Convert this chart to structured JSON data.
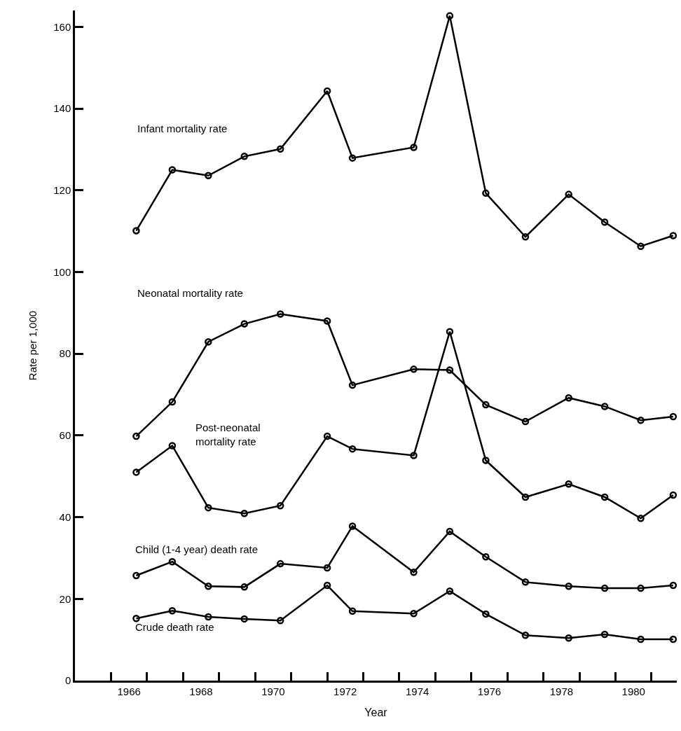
{
  "chart_data": {
    "type": "line",
    "xlabel": "Year",
    "ylabel": "Rate per 1,000",
    "x": [
      1966.2,
      1967.2,
      1968.2,
      1969.2,
      1970.2,
      1971.5,
      1972.2,
      1973.9,
      1974.9,
      1975.9,
      1977.0,
      1978.2,
      1979.2,
      1980.2,
      1981.1
    ],
    "series": [
      {
        "name": "Infant mortality rate",
        "color": "#000000",
        "values": [
          110.1,
          125.0,
          123.6,
          128.3,
          130.1,
          144.3,
          127.9,
          130.5,
          162.7,
          119.3,
          108.6,
          119.0,
          112.2,
          106.3,
          108.9
        ]
      },
      {
        "name": "Neonatal mortality rate",
        "color": "#000000",
        "values": [
          59.8,
          68.2,
          82.9,
          87.3,
          89.7,
          88.0,
          72.3,
          76.2,
          76.0,
          67.5,
          63.4,
          69.2,
          67.1,
          63.7,
          64.6
        ]
      },
      {
        "name": "Post-neonatal\nmortality rate",
        "color": "#000000",
        "values": [
          51.0,
          57.5,
          42.3,
          40.9,
          42.8,
          59.8,
          56.7,
          55.1,
          85.4,
          53.9,
          44.9,
          48.1,
          44.9,
          39.7,
          45.4
        ]
      },
      {
        "name": "Child (1-4 year) death rate",
        "color": "#000000",
        "values": [
          25.7,
          29.1,
          23.1,
          22.9,
          28.6,
          27.6,
          37.8,
          26.5,
          36.5,
          30.3,
          24.1,
          23.1,
          22.6,
          22.6,
          23.3
        ]
      },
      {
        "name": "Crude death rate",
        "color": "#000000",
        "values": [
          15.2,
          17.1,
          15.6,
          15.1,
          14.7,
          23.3,
          17.0,
          16.4,
          21.9,
          16.3,
          11.1,
          10.4,
          11.3,
          10.1,
          10.1
        ]
      }
    ],
    "xlim": [
      1964.5,
      1981.2
    ],
    "ylim": [
      0,
      164
    ],
    "xticks": [
      {
        "value": 1965.5,
        "label": null
      },
      {
        "value": 1966,
        "label": "1966"
      },
      {
        "value": 1966.5,
        "label": null
      },
      {
        "value": 1967.5,
        "label": null
      },
      {
        "value": 1968,
        "label": "1968"
      },
      {
        "value": 1968.5,
        "label": null
      },
      {
        "value": 1969.5,
        "label": null
      },
      {
        "value": 1970,
        "label": "1970"
      },
      {
        "value": 1970.5,
        "label": null
      },
      {
        "value": 1971.5,
        "label": null
      },
      {
        "value": 1972,
        "label": "1972"
      },
      {
        "value": 1972.5,
        "label": null
      },
      {
        "value": 1973.5,
        "label": null
      },
      {
        "value": 1974,
        "label": "1974"
      },
      {
        "value": 1974.5,
        "label": null
      },
      {
        "value": 1975.5,
        "label": null
      },
      {
        "value": 1976,
        "label": "1976"
      },
      {
        "value": 1976.5,
        "label": null
      },
      {
        "value": 1977.5,
        "label": null
      },
      {
        "value": 1978,
        "label": "1978"
      },
      {
        "value": 1978.5,
        "label": null
      },
      {
        "value": 1979.5,
        "label": null
      },
      {
        "value": 1980,
        "label": "1980"
      },
      {
        "value": 1980.5,
        "label": null
      }
    ],
    "yticks": [
      0,
      20,
      40,
      60,
      80,
      100,
      120,
      140,
      160
    ],
    "legend": false,
    "marker": "circle",
    "line_style": "solid"
  }
}
